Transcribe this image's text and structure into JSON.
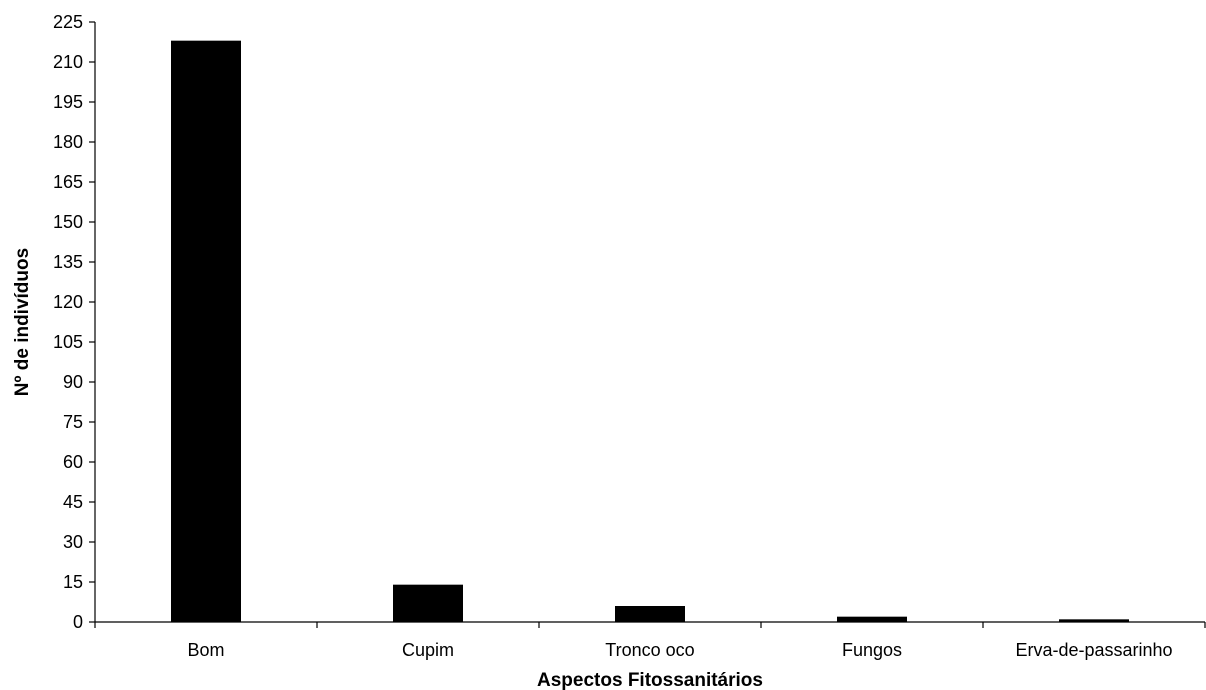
{
  "chart_data": {
    "type": "bar",
    "title": "",
    "xlabel": "Aspectos Fitossanitários",
    "ylabel": "Nº de indivíduos",
    "categories": [
      "Bom",
      "Cupim",
      "Tronco oco",
      "Fungos",
      "Erva-de-passarinho"
    ],
    "values": [
      218,
      14,
      6,
      2,
      1
    ],
    "ylim": [
      0,
      225
    ],
    "yticks": [
      0,
      15,
      30,
      45,
      60,
      75,
      90,
      105,
      120,
      135,
      150,
      165,
      180,
      195,
      210,
      225
    ],
    "grid": false,
    "legend": "none",
    "bar_color": "#000000",
    "axis_color": "#000000"
  }
}
